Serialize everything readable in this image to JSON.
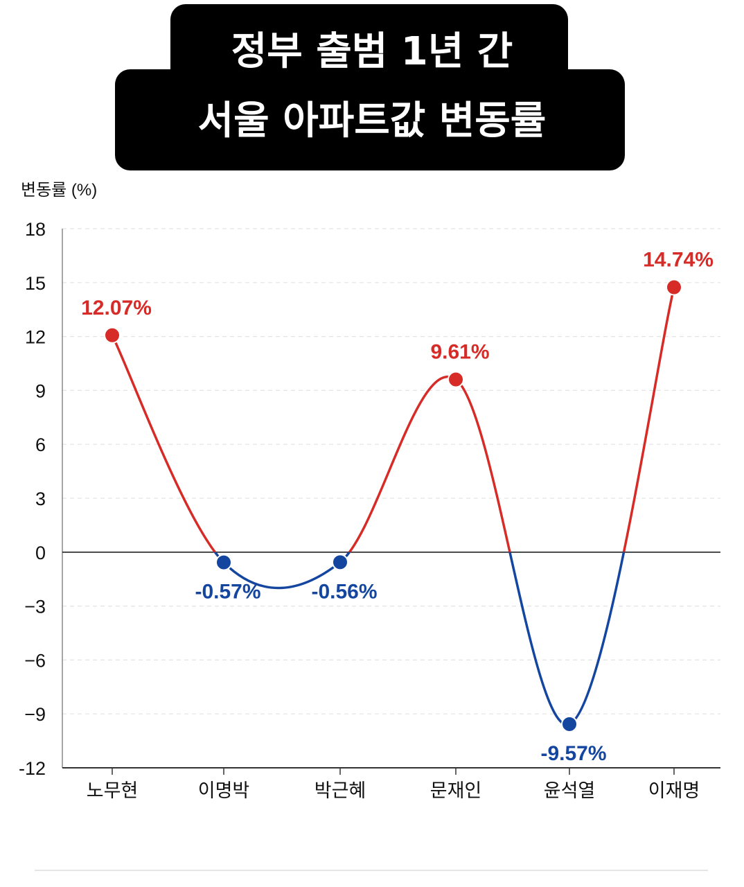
{
  "title_lines": [
    "정부 출범 1년 간",
    "서울 아파트값 변동률"
  ],
  "chart_data": {
    "type": "line",
    "title": "정부 출범 1년 간 서울 아파트값 변동률",
    "ylabel": "변동률 (%)",
    "xlabel": "",
    "categories": [
      "노무현",
      "이명박",
      "박근혜",
      "문재인",
      "윤석열",
      "이재명"
    ],
    "values": [
      12.07,
      -0.57,
      -0.56,
      9.61,
      -9.57,
      14.74
    ],
    "data_labels": [
      "12.07%",
      "-0.57%",
      "-0.56%",
      "9.61%",
      "-9.57%",
      "14.74%"
    ],
    "y_ticks": [
      "18",
      "15",
      "12",
      "9",
      "6",
      "3",
      "0",
      "−3",
      "−6",
      "−9",
      "-12"
    ],
    "ylim": [
      -12,
      18
    ],
    "grid": true,
    "colors": {
      "positive": "#d62b26",
      "negative": "#1446a0",
      "axis": "#333333",
      "grid": "#e3e3e3"
    }
  }
}
